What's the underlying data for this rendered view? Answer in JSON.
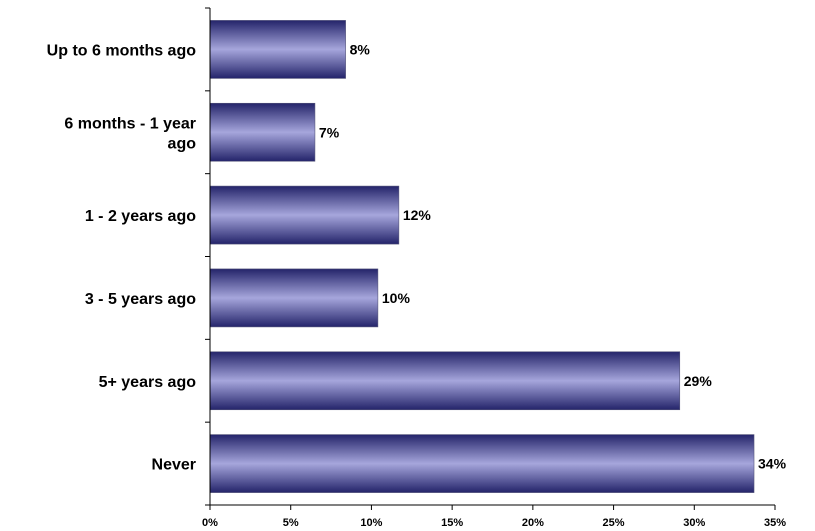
{
  "chart_data": {
    "type": "bar",
    "orientation": "horizontal",
    "categories": [
      "Up to 6 months ago",
      "6 months - 1 year ago",
      "1 - 2 years ago",
      "3 - 5 years ago",
      "5+ years ago",
      "Never"
    ],
    "values": [
      8.4,
      6.5,
      11.7,
      10.4,
      29.1,
      33.7
    ],
    "value_labels": [
      "8%",
      "7%",
      "12%",
      "10%",
      "29%",
      "34%"
    ],
    "xlim": [
      0,
      35
    ],
    "x_ticks": [
      0,
      5,
      10,
      15,
      20,
      25,
      30,
      35
    ],
    "x_tick_labels": [
      "0%",
      "5%",
      "10%",
      "15%",
      "20%",
      "25%",
      "30%",
      "35%"
    ],
    "title": "",
    "xlabel": "",
    "ylabel": "",
    "grid": false,
    "legend": "none",
    "colors": {
      "bar_dark": "#24246a",
      "bar_light": "#a6a6dc",
      "axis": "#000000"
    }
  }
}
